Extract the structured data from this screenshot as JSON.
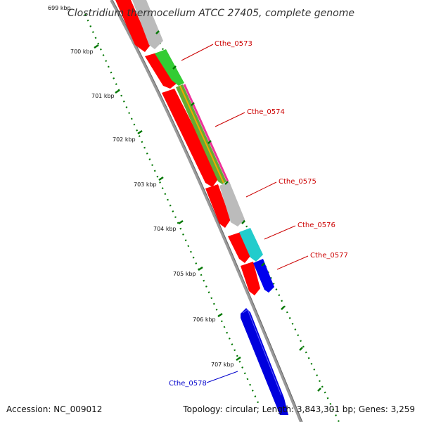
{
  "title": "Clostridium thermocellum ATCC 27405, complete genome",
  "accession": "Accession: NC_009012",
  "summary": "Topology: circular; Length: 3,843,301 bp; Genes: 3,259",
  "ticks": [
    "699 kbp",
    "700 kbp",
    "701 kbp",
    "702 kbp",
    "703 kbp",
    "704 kbp",
    "705 kbp",
    "706 kbp",
    "707 kbp"
  ],
  "gene_labels": [
    {
      "text": "Cthe_0573",
      "color": "#cc0000"
    },
    {
      "text": "Cthe_0574",
      "color": "#cc0000"
    },
    {
      "text": "Cthe_0575",
      "color": "#cc0000"
    },
    {
      "text": "Cthe_0576",
      "color": "#cc0000"
    },
    {
      "text": "Cthe_0577",
      "color": "#cc0000"
    },
    {
      "text": "Cthe_0578",
      "color": "#0000cc"
    }
  ],
  "colors": {
    "red_track": "#ff0000",
    "grey_track": "#bbbbbb",
    "green_track": "#33cc33",
    "cyan_track": "#22cccc",
    "blue_track": "#0000ee",
    "backbone": "#888888",
    "tick_marks": "#007700"
  }
}
